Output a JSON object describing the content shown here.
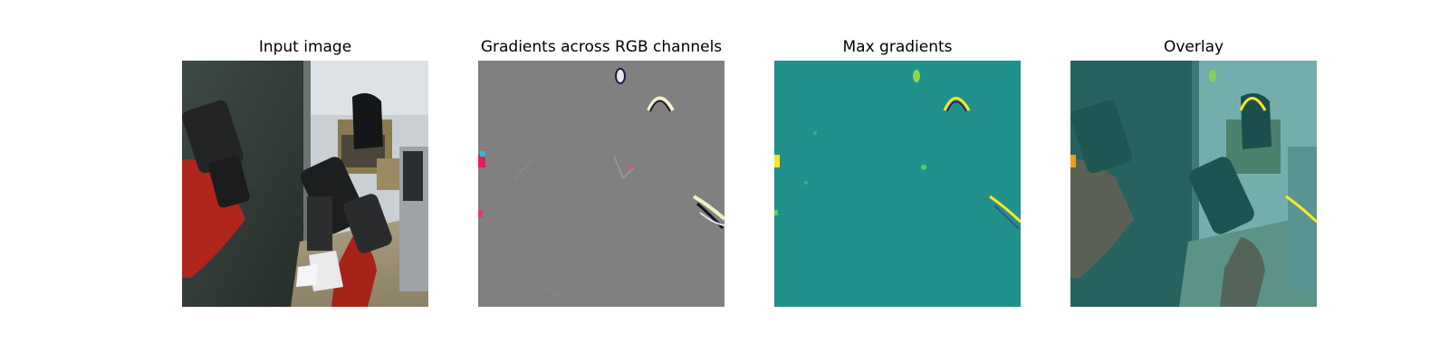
{
  "panels": [
    {
      "title": "Input image",
      "image": "robot-arm-lab-photo"
    },
    {
      "title": "Gradients across RGB channels",
      "image": "rgb-gradient-map"
    },
    {
      "title": "Max gradients",
      "image": "max-gradient-heatmap"
    },
    {
      "title": "Overlay",
      "image": "gradient-overlay-on-photo"
    }
  ],
  "colors": {
    "gradient_background": "#808080",
    "heatmap_background": "#21918c",
    "heatmap_high": "#fde725",
    "robot_red": "#b0261c"
  }
}
